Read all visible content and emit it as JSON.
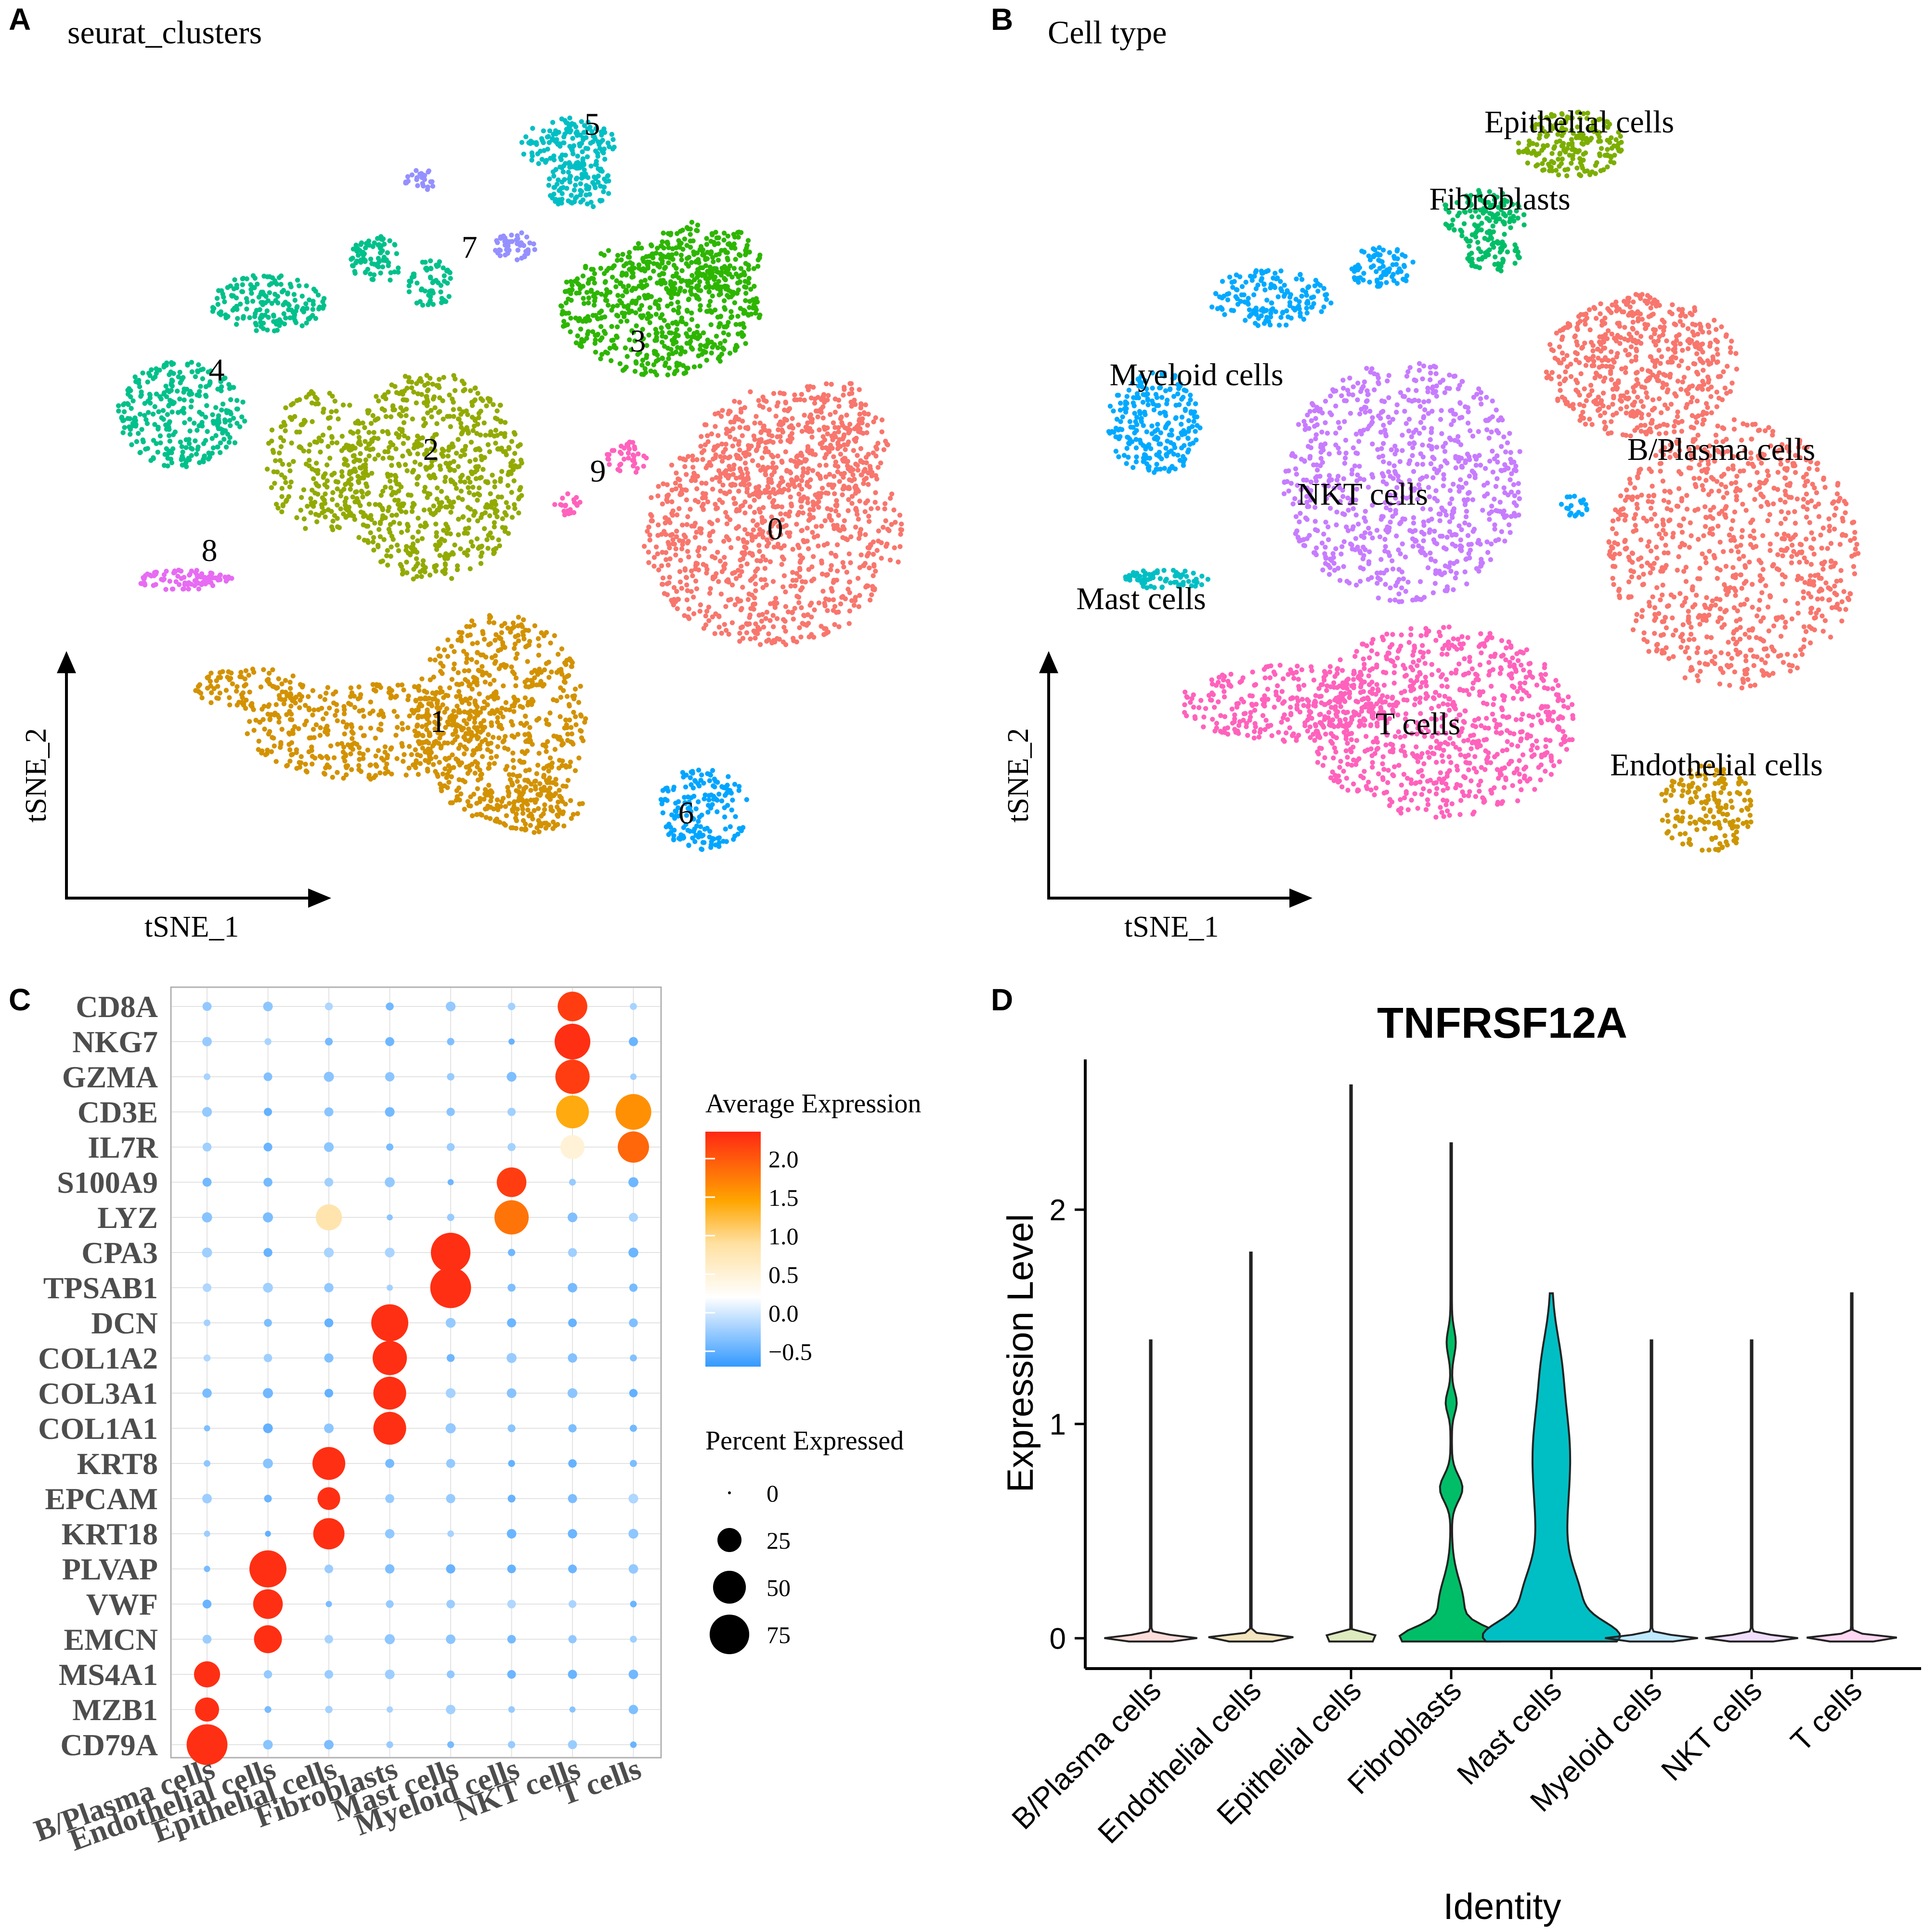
{
  "panels": {
    "a": {
      "letter": "A",
      "title": "seurat_clusters",
      "xaxis": "tSNE_1",
      "yaxis": "tSNE_2"
    },
    "b": {
      "letter": "B",
      "title": "Cell type",
      "xaxis": "tSNE_1",
      "yaxis": "tSNE_2"
    },
    "c": {
      "letter": "C"
    },
    "d": {
      "letter": "D"
    }
  },
  "chart_data": [
    {
      "type": "scatter",
      "title": "seurat_clusters",
      "xlabel": "tSNE_1",
      "ylabel": "tSNE_2",
      "clusters": [
        {
          "label": "0",
          "color": "#F8766D"
        },
        {
          "label": "1",
          "color": "#D39200"
        },
        {
          "label": "2",
          "color": "#93AA00"
        },
        {
          "label": "3",
          "color": "#2DB600"
        },
        {
          "label": "4",
          "color": "#00C08B"
        },
        {
          "label": "5",
          "color": "#00BFC4"
        },
        {
          "label": "6",
          "color": "#00A5FF"
        },
        {
          "label": "7",
          "color": "#9590FF"
        },
        {
          "label": "8",
          "color": "#E76BF3"
        },
        {
          "label": "9",
          "color": "#FF62BC"
        }
      ]
    },
    {
      "type": "scatter",
      "title": "Cell type",
      "xlabel": "tSNE_1",
      "ylabel": "tSNE_2",
      "clusters": [
        {
          "label": "B/Plasma cells",
          "color": "#F8766D"
        },
        {
          "label": "T cells",
          "color": "#FF62BC"
        },
        {
          "label": "NKT cells",
          "color": "#C77CFF"
        },
        {
          "label": "Myeloid cells",
          "color": "#00A9FF"
        },
        {
          "label": "Fibroblasts",
          "color": "#00BE67"
        },
        {
          "label": "Epithelial cells",
          "color": "#7CAE00"
        },
        {
          "label": "Mast cells",
          "color": "#00BFC4"
        },
        {
          "label": "Endothelial cells",
          "color": "#CD9600"
        }
      ]
    },
    {
      "type": "dot",
      "genes": [
        "CD8A",
        "NKG7",
        "GZMA",
        "CD3E",
        "IL7R",
        "S100A9",
        "LYZ",
        "CPA3",
        "TPSAB1",
        "DCN",
        "COL1A2",
        "COL3A1",
        "COL1A1",
        "KRT8",
        "EPCAM",
        "KRT18",
        "PLVAP",
        "VWF",
        "EMCN",
        "MS4A1",
        "MZB1",
        "CD79A"
      ],
      "cell_types": [
        "B/Plasma cells",
        "Endothelial cells",
        "Epithelial cells",
        "Fibroblasts",
        "Mast cells",
        "Myeloid cells",
        "NKT cells",
        "T cells"
      ],
      "highlights": [
        {
          "gene": "CD8A",
          "cell": "NKT cells",
          "pct": 40,
          "avg": 2.2
        },
        {
          "gene": "NKG7",
          "cell": "NKT cells",
          "pct": 60,
          "avg": 2.3
        },
        {
          "gene": "GZMA",
          "cell": "NKT cells",
          "pct": 55,
          "avg": 2.2
        },
        {
          "gene": "CD3E",
          "cell": "NKT cells",
          "pct": 50,
          "avg": 1.4
        },
        {
          "gene": "CD3E",
          "cell": "T cells",
          "pct": 60,
          "avg": 1.6
        },
        {
          "gene": "IL7R",
          "cell": "NKT cells",
          "pct": 25,
          "avg": 0.5
        },
        {
          "gene": "IL7R",
          "cell": "T cells",
          "pct": 45,
          "avg": 1.9
        },
        {
          "gene": "S100A9",
          "cell": "Myeloid cells",
          "pct": 40,
          "avg": 2.2
        },
        {
          "gene": "LYZ",
          "cell": "Myeloid cells",
          "pct": 55,
          "avg": 1.8
        },
        {
          "gene": "LYZ",
          "cell": "Epithelial cells",
          "pct": 30,
          "avg": 0.8
        },
        {
          "gene": "CPA3",
          "cell": "Mast cells",
          "pct": 75,
          "avg": 2.3
        },
        {
          "gene": "TPSAB1",
          "cell": "Mast cells",
          "pct": 80,
          "avg": 2.3
        },
        {
          "gene": "DCN",
          "cell": "Fibroblasts",
          "pct": 65,
          "avg": 2.3
        },
        {
          "gene": "COL1A2",
          "cell": "Fibroblasts",
          "pct": 55,
          "avg": 2.3
        },
        {
          "gene": "COL3A1",
          "cell": "Fibroblasts",
          "pct": 50,
          "avg": 2.3
        },
        {
          "gene": "COL1A1",
          "cell": "Fibroblasts",
          "pct": 50,
          "avg": 2.3
        },
        {
          "gene": "KRT8",
          "cell": "Epithelial cells",
          "pct": 50,
          "avg": 2.3
        },
        {
          "gene": "EPCAM",
          "cell": "Epithelial cells",
          "pct": 22,
          "avg": 2.3
        },
        {
          "gene": "KRT18",
          "cell": "Epithelial cells",
          "pct": 45,
          "avg": 2.3
        },
        {
          "gene": "PLVAP",
          "cell": "Endothelial cells",
          "pct": 65,
          "avg": 2.3
        },
        {
          "gene": "VWF",
          "cell": "Endothelial cells",
          "pct": 40,
          "avg": 2.3
        },
        {
          "gene": "EMCN",
          "cell": "Endothelial cells",
          "pct": 35,
          "avg": 2.3
        },
        {
          "gene": "MS4A1",
          "cell": "B/Plasma cells",
          "pct": 30,
          "avg": 2.3
        },
        {
          "gene": "MZB1",
          "cell": "B/Plasma cells",
          "pct": 25,
          "avg": 2.3
        },
        {
          "gene": "CD79A",
          "cell": "B/Plasma cells",
          "pct": 80,
          "avg": 2.3
        }
      ],
      "color_legend": {
        "title": "Average Expression",
        "ticks": [
          "2.0",
          "1.5",
          "1.0",
          "0.5",
          "0.0",
          "−0.5"
        ],
        "range": [
          -0.7,
          2.35
        ]
      },
      "size_legend": {
        "title": "Percent Expressed",
        "ticks": [
          "0",
          "25",
          "50",
          "75"
        ]
      }
    },
    {
      "type": "violin",
      "title": "TNFRSF12A",
      "xlabel": "Identity",
      "ylabel": "Expression Level",
      "categories": [
        "B/Plasma cells",
        "Endothelial cells",
        "Epithelial cells",
        "Fibroblasts",
        "Mast cells",
        "Myeloid cells",
        "NKT cells",
        "T cells"
      ],
      "colors": [
        "#F8766D",
        "#CD9600",
        "#7CAE00",
        "#00BE67",
        "#00BFC4",
        "#00A9FF",
        "#C77CFF",
        "#FF61CC"
      ],
      "max_values": [
        1.39,
        1.8,
        2.58,
        2.31,
        1.61,
        1.39,
        1.39,
        1.61
      ],
      "ylim": [
        -0.07,
        2.72
      ],
      "yticks": [
        "0",
        "1",
        "2"
      ]
    }
  ]
}
